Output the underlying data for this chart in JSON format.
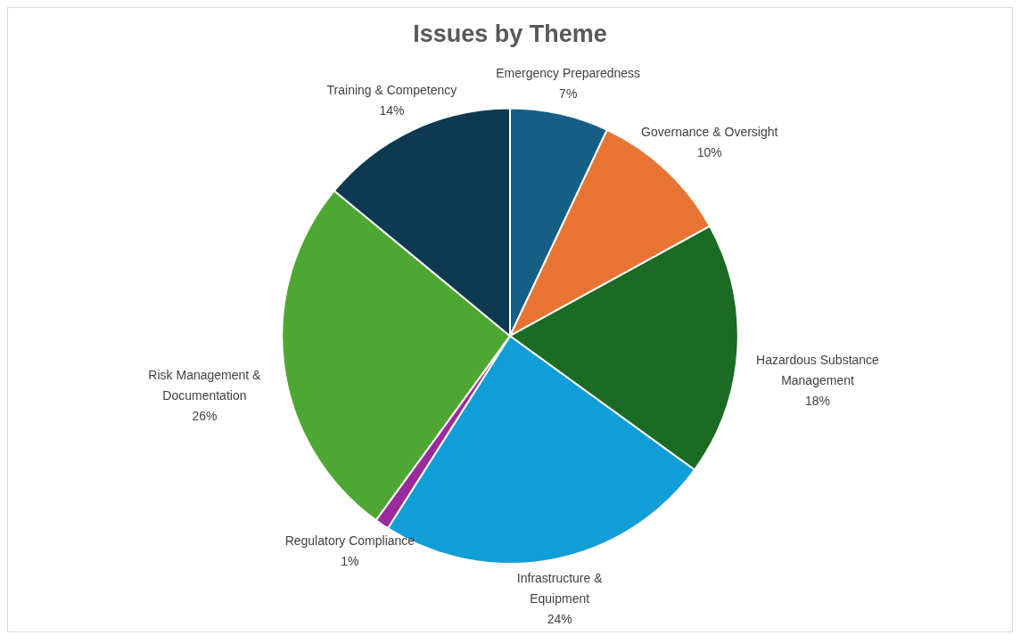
{
  "chart_data": {
    "type": "pie",
    "title": "Issues by Theme",
    "categories": [
      "Emergency Preparedness",
      "Governance & Oversight",
      "Hazardous Substance Management",
      "Infrastructure & Equipment",
      "Regulatory Compliance",
      "Risk Management & Documentation",
      "Training & Competency"
    ],
    "values": [
      7,
      10,
      18,
      24,
      1,
      26,
      14
    ],
    "value_labels": [
      "7%",
      "10%",
      "18%",
      "24%",
      "1%",
      "26%",
      "14%"
    ],
    "colors": [
      "#165f85",
      "#e87434",
      "#1b6b25",
      "#119ed6",
      "#9a2b9a",
      "#4fa733",
      "#0d3a50"
    ],
    "legend": false
  }
}
